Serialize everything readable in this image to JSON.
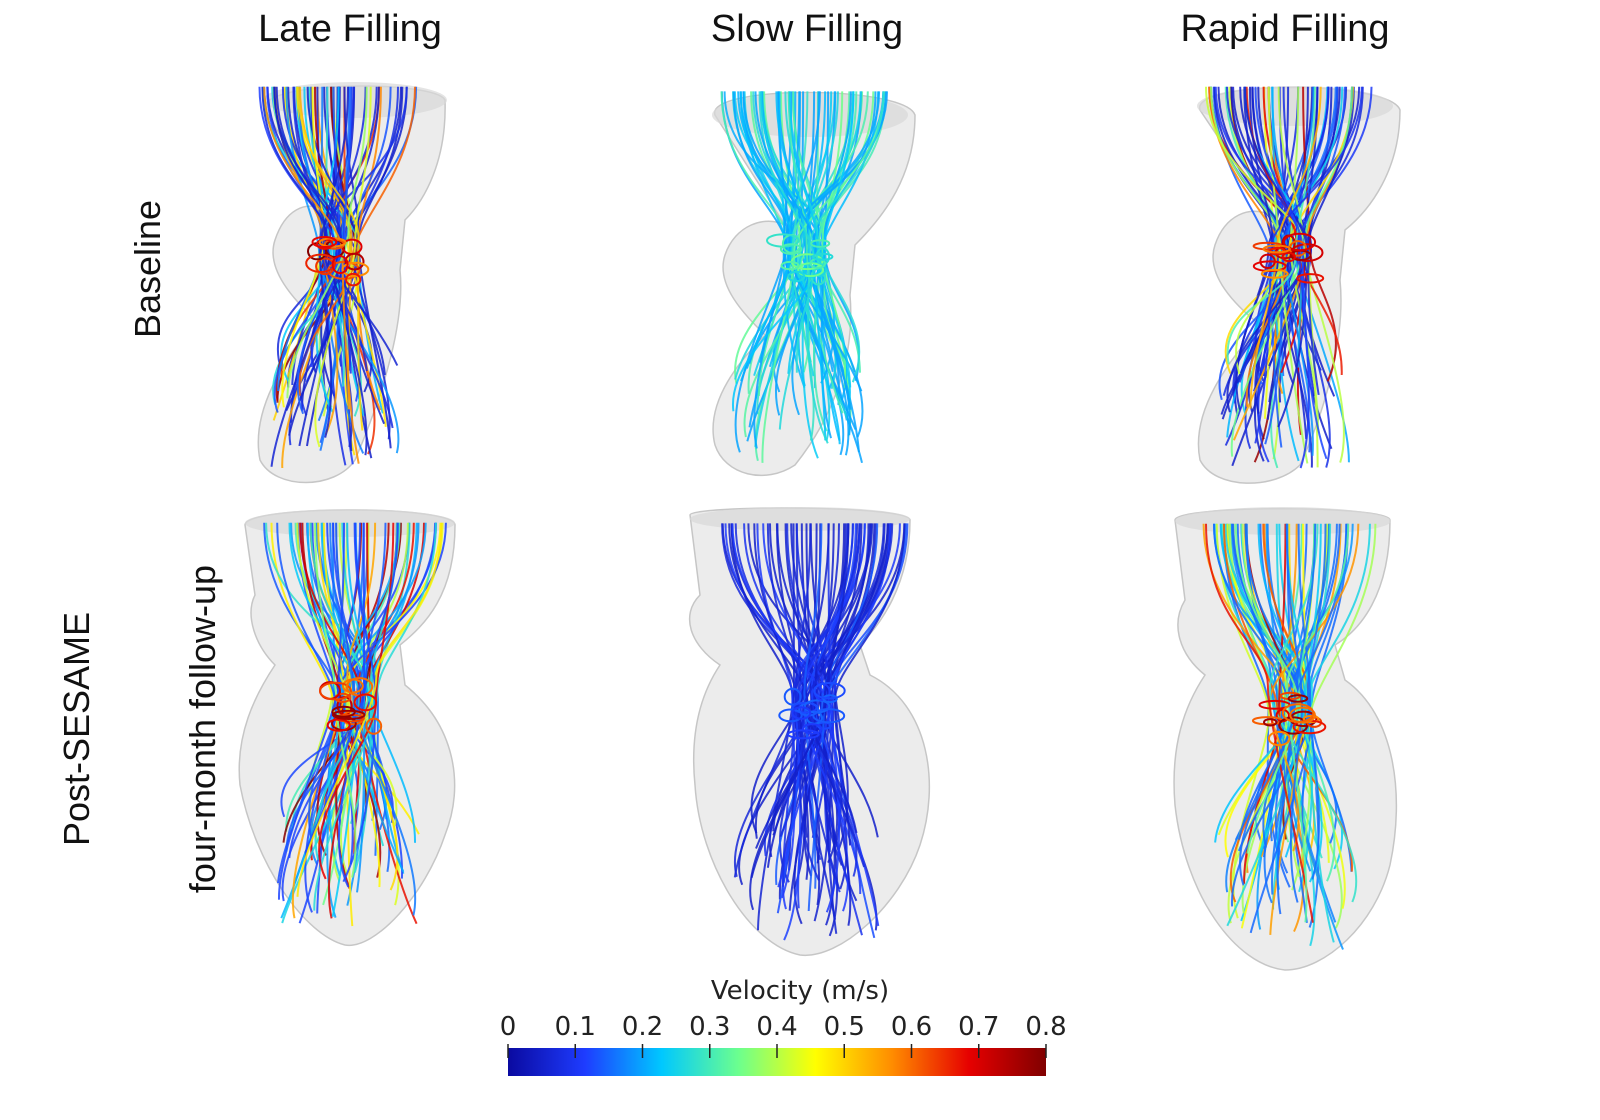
{
  "columns": [
    "Late Filling",
    "Slow Filling",
    "Rapid Filling"
  ],
  "rows": {
    "baseline": "Baseline",
    "post_line1": "Post-SESAME",
    "post_line2": "four-month follow-up"
  },
  "colorbar": {
    "title": "Velocity (m/s)",
    "ticks": [
      "0",
      "0.1",
      "0.2",
      "0.3",
      "0.4",
      "0.5",
      "0.6",
      "0.7",
      "0.8"
    ],
    "range": [
      0,
      0.8
    ],
    "colormap": [
      "#0a0aa0",
      "#1e3cff",
      "#00c8ff",
      "#6cff8e",
      "#ffff00",
      "#ff8c00",
      "#e60000",
      "#800000"
    ]
  },
  "panels": [
    {
      "column": "Late Filling",
      "row": "Baseline",
      "peak_velocity": 0.8,
      "typical_velocity": 0.05
    },
    {
      "column": "Slow Filling",
      "row": "Baseline",
      "peak_velocity": 0.35,
      "typical_velocity": 0.2
    },
    {
      "column": "Rapid Filling",
      "row": "Baseline",
      "peak_velocity": 0.8,
      "typical_velocity": 0.05
    },
    {
      "column": "Late Filling",
      "row": "Post-SESAME four-month follow-up",
      "peak_velocity": 0.8,
      "typical_velocity": 0.12
    },
    {
      "column": "Slow Filling",
      "row": "Post-SESAME four-month follow-up",
      "peak_velocity": 0.15,
      "typical_velocity": 0.05
    },
    {
      "column": "Rapid Filling",
      "row": "Post-SESAME four-month follow-up",
      "peak_velocity": 0.8,
      "typical_velocity": 0.15
    }
  ]
}
